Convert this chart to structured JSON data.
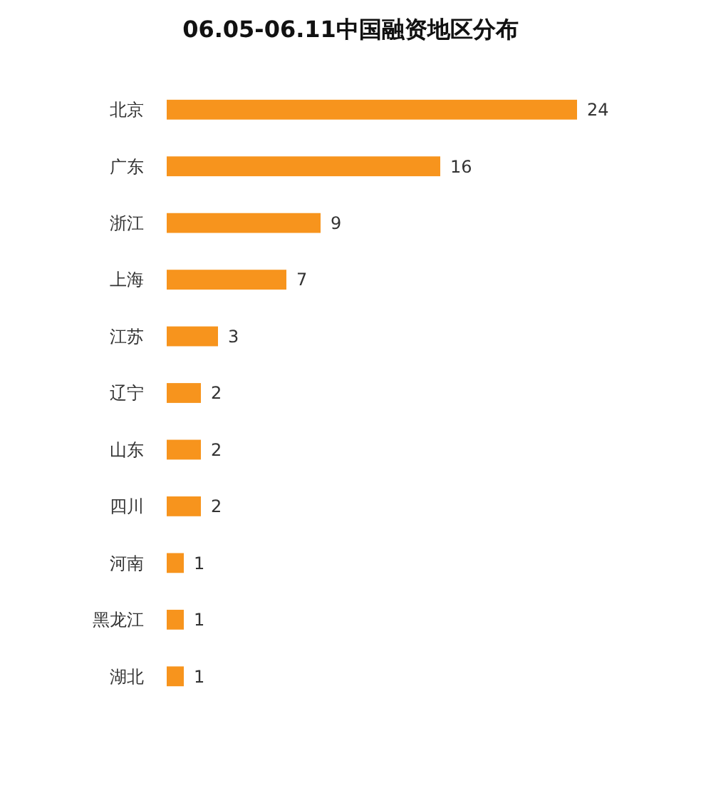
{
  "chart_data": {
    "type": "bar",
    "orientation": "horizontal",
    "title": "06.05-06.11中国融资地区分布",
    "categories": [
      "北京",
      "广东",
      "浙江",
      "上海",
      "江苏",
      "辽宁",
      "山东",
      "四川",
      "河南",
      "黑龙江",
      "湖北"
    ],
    "values": [
      24,
      16,
      9,
      7,
      3,
      2,
      2,
      2,
      1,
      1,
      1
    ],
    "color": "#f7941d",
    "data_labels": true
  }
}
